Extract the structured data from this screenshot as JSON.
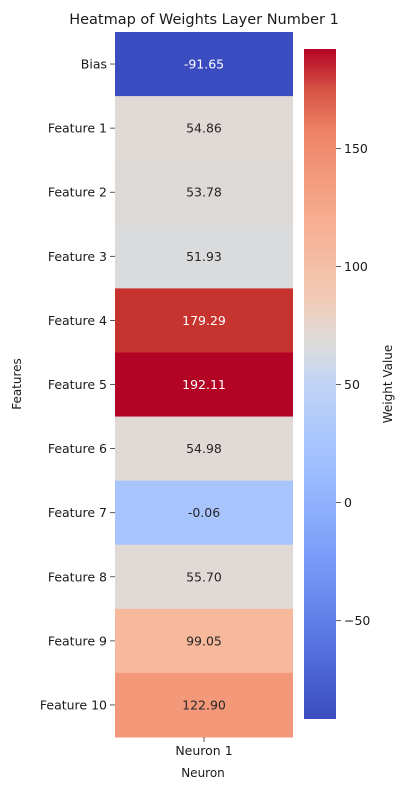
{
  "chart_data": {
    "type": "heatmap",
    "title": "Heatmap of Weights Layer Number 1",
    "xlabel": "Neuron",
    "ylabel": "Features",
    "columns": [
      "Neuron 1"
    ],
    "rows": [
      "Bias",
      "Feature 1",
      "Feature 2",
      "Feature 3",
      "Feature 4",
      "Feature 5",
      "Feature 6",
      "Feature 7",
      "Feature 8",
      "Feature 9",
      "Feature 10"
    ],
    "values": [
      -91.65,
      54.86,
      53.78,
      51.93,
      179.29,
      192.11,
      54.98,
      -0.06,
      55.7,
      99.05,
      122.9
    ],
    "value_labels": [
      "-91.65",
      "54.86",
      "53.78",
      "51.93",
      "179.29",
      "192.11",
      "54.98",
      "-0.06",
      "55.70",
      "99.05",
      "122.90"
    ],
    "colormap": "coolwarm",
    "colorbar": {
      "label": "Weight Value",
      "range": [
        -91.65,
        192.11
      ],
      "ticks": [
        -50,
        0,
        50,
        100,
        150
      ],
      "tick_labels": [
        "−50",
        "0",
        "50",
        "100",
        "150"
      ]
    },
    "cell_colors": [
      "#3b4cc0",
      "#e0d9d6",
      "#ddd9d6",
      "#dadbdc",
      "#c73430",
      "#b40426",
      "#e0d9d6",
      "#a7c4fd",
      "#e0d9d6",
      "#f7b89c",
      "#f4987a"
    ]
  }
}
